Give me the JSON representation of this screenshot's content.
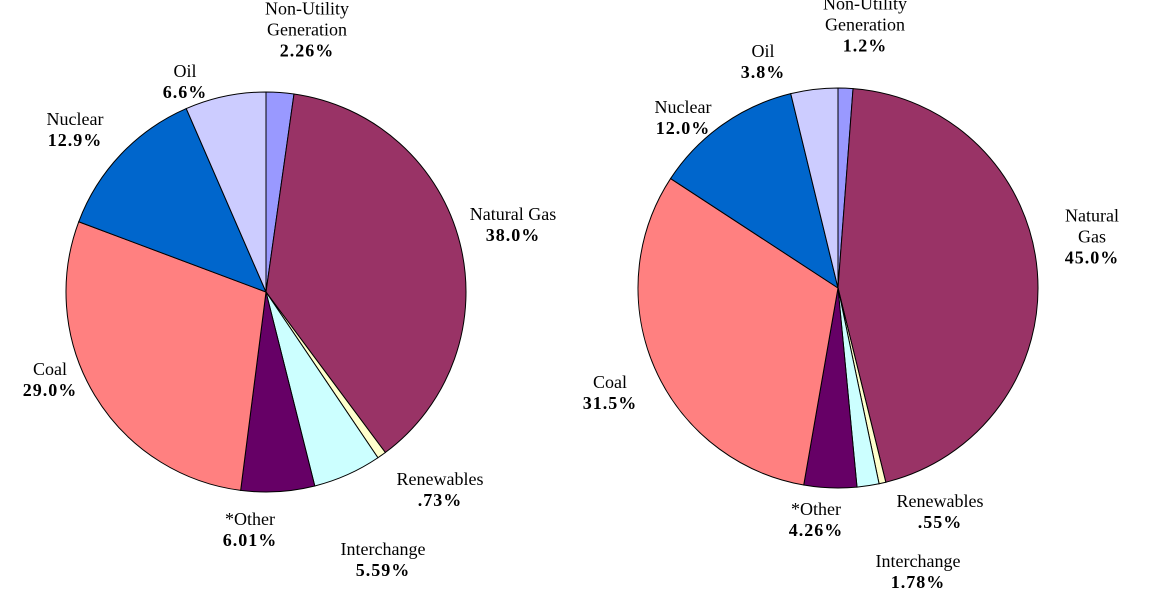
{
  "chart_data": [
    {
      "type": "pie",
      "categories": [
        "Non-Utility Generation",
        "Natural Gas",
        "Renewables",
        "Interchange",
        "*Other",
        "Coal",
        "Nuclear",
        "Oil"
      ],
      "values": [
        2.26,
        38.0,
        0.73,
        5.59,
        6.01,
        29.0,
        12.9,
        6.6
      ],
      "value_labels": [
        "2.26%",
        "38.0%",
        ".73%",
        "5.59%",
        "6.01%",
        "29.0%",
        "12.9%",
        "6.6%"
      ],
      "colors": [
        "#9999ff",
        "#993366",
        "#ffffcc",
        "#ccffff",
        "#660066",
        "#ff8080",
        "#0066cc",
        "#ccccff"
      ]
    },
    {
      "type": "pie",
      "categories": [
        "Non-Utility Generation",
        "Natural Gas",
        "Renewables",
        "Interchange",
        "*Other",
        "Coal",
        "Nuclear",
        "Oil"
      ],
      "values": [
        1.2,
        45.0,
        0.55,
        1.78,
        4.26,
        31.5,
        12.0,
        3.8
      ],
      "value_labels": [
        "1.2%",
        "45.0%",
        ".55%",
        "1.78%",
        "4.26%",
        "31.5%",
        "12.0%",
        "3.8%"
      ],
      "colors": [
        "#9999ff",
        "#993366",
        "#ffffcc",
        "#ccffff",
        "#660066",
        "#ff8080",
        "#0066cc",
        "#ccccff"
      ]
    }
  ]
}
